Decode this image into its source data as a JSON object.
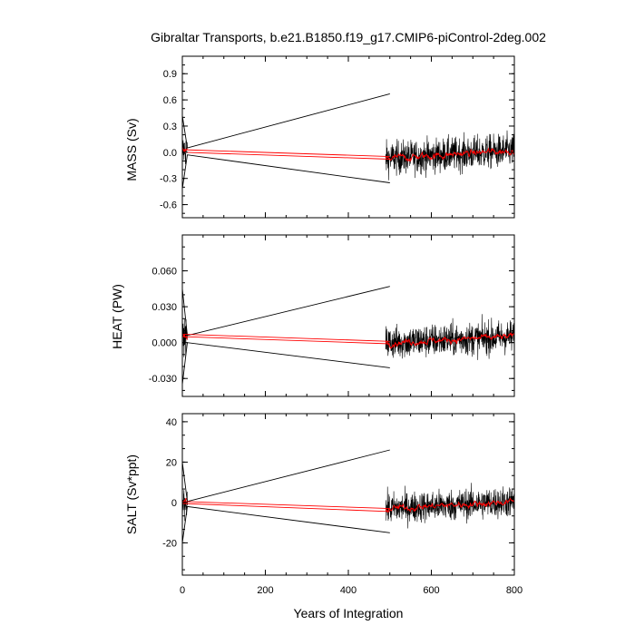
{
  "chart_data": [
    {
      "type": "line",
      "title": "Gibraltar Transports, b.e21.B1850.f19_g17.CMIP6-piControl-2deg.002",
      "ylabel": "MASS (Sv)",
      "xlabel": "",
      "xlim": [
        0,
        800
      ],
      "ylim": [
        -0.75,
        1.1
      ],
      "yticks": [
        "0.9",
        "0.6",
        "0.3",
        "0.0",
        "-0.3",
        "-0.6"
      ],
      "ytick_values": [
        0.9,
        0.6,
        0.3,
        0.0,
        -0.3,
        -0.6
      ],
      "xticks": [],
      "xtick_values": [
        0,
        200,
        400,
        600,
        800
      ],
      "segments": [
        [
          0,
          12
        ],
        [
          490,
          800
        ]
      ],
      "noise_amplitude": 0.25,
      "running_mean_amplitude": 0.03,
      "envelope": {
        "upper": [
          [
            0,
            0.42
          ],
          [
            12,
            0.05
          ],
          [
            500,
            0.67
          ]
        ],
        "lower": [
          [
            0,
            -0.42
          ],
          [
            12,
            -0.03
          ],
          [
            500,
            -0.35
          ]
        ]
      },
      "series": [
        {
          "color": "#000000",
          "values": [
            [
              0,
              0.02
            ],
            [
              500,
              -0.07
            ],
            [
              800,
              0.02
            ]
          ]
        },
        {
          "color": "#ff0000",
          "values": [
            [
              0,
              0.03
            ],
            [
              500,
              -0.05
            ]
          ]
        },
        {
          "color": "#ff0000",
          "values": [
            [
              0,
              0.0
            ],
            [
              500,
              -0.08
            ]
          ]
        }
      ]
    },
    {
      "type": "line",
      "title": "",
      "ylabel": "HEAT (PW)",
      "xlabel": "",
      "xlim": [
        0,
        800
      ],
      "ylim": [
        -0.045,
        0.09
      ],
      "yticks": [
        "0.060",
        "0.030",
        "0.000",
        "-0.030"
      ],
      "ytick_values": [
        0.06,
        0.03,
        0.0,
        -0.03
      ],
      "xticks": [],
      "xtick_values": [
        0,
        200,
        400,
        600,
        800
      ],
      "segments": [
        [
          0,
          12
        ],
        [
          490,
          800
        ]
      ],
      "noise_amplitude": 0.018,
      "running_mean_amplitude": 0.002,
      "envelope": {
        "upper": [
          [
            0,
            0.045
          ],
          [
            12,
            0.006
          ],
          [
            500,
            0.047
          ]
        ],
        "lower": [
          [
            0,
            -0.035
          ],
          [
            12,
            0.0
          ],
          [
            500,
            -0.021
          ]
        ]
      },
      "series": [
        {
          "color": "#000000",
          "values": [
            [
              0,
              0.005
            ],
            [
              500,
              0.0
            ],
            [
              800,
              0.005
            ]
          ]
        },
        {
          "color": "#ff0000",
          "values": [
            [
              0,
              0.007
            ],
            [
              500,
              0.001
            ]
          ]
        },
        {
          "color": "#ff0000",
          "values": [
            [
              0,
              0.005
            ],
            [
              500,
              -0.001
            ]
          ]
        }
      ]
    },
    {
      "type": "line",
      "title": "",
      "ylabel": "SALT (Sv*ppt)",
      "xlabel": "Years of Integration",
      "xlim": [
        0,
        800
      ],
      "ylim": [
        -36,
        44
      ],
      "yticks": [
        "40",
        "20",
        "0",
        "-20"
      ],
      "ytick_values": [
        40,
        20,
        0,
        -20
      ],
      "xticks": [
        "0",
        "200",
        "400",
        "600",
        "800"
      ],
      "xtick_values": [
        0,
        200,
        400,
        600,
        800
      ],
      "segments": [
        [
          0,
          12
        ],
        [
          490,
          800
        ]
      ],
      "noise_amplitude": 10,
      "running_mean_amplitude": 1.2,
      "envelope": {
        "upper": [
          [
            0,
            20
          ],
          [
            12,
            0.5
          ],
          [
            500,
            26
          ]
        ],
        "lower": [
          [
            0,
            -20
          ],
          [
            12,
            -2
          ],
          [
            500,
            -15
          ]
        ]
      },
      "series": [
        {
          "color": "#000000",
          "values": [
            [
              0,
              0.5
            ],
            [
              500,
              -3
            ],
            [
              800,
              0.5
            ]
          ]
        },
        {
          "color": "#ff0000",
          "values": [
            [
              0,
              0.5
            ],
            [
              500,
              -3
            ]
          ]
        },
        {
          "color": "#ff0000",
          "values": [
            [
              0,
              -0.5
            ],
            [
              500,
              -4.5
            ]
          ]
        }
      ]
    }
  ]
}
